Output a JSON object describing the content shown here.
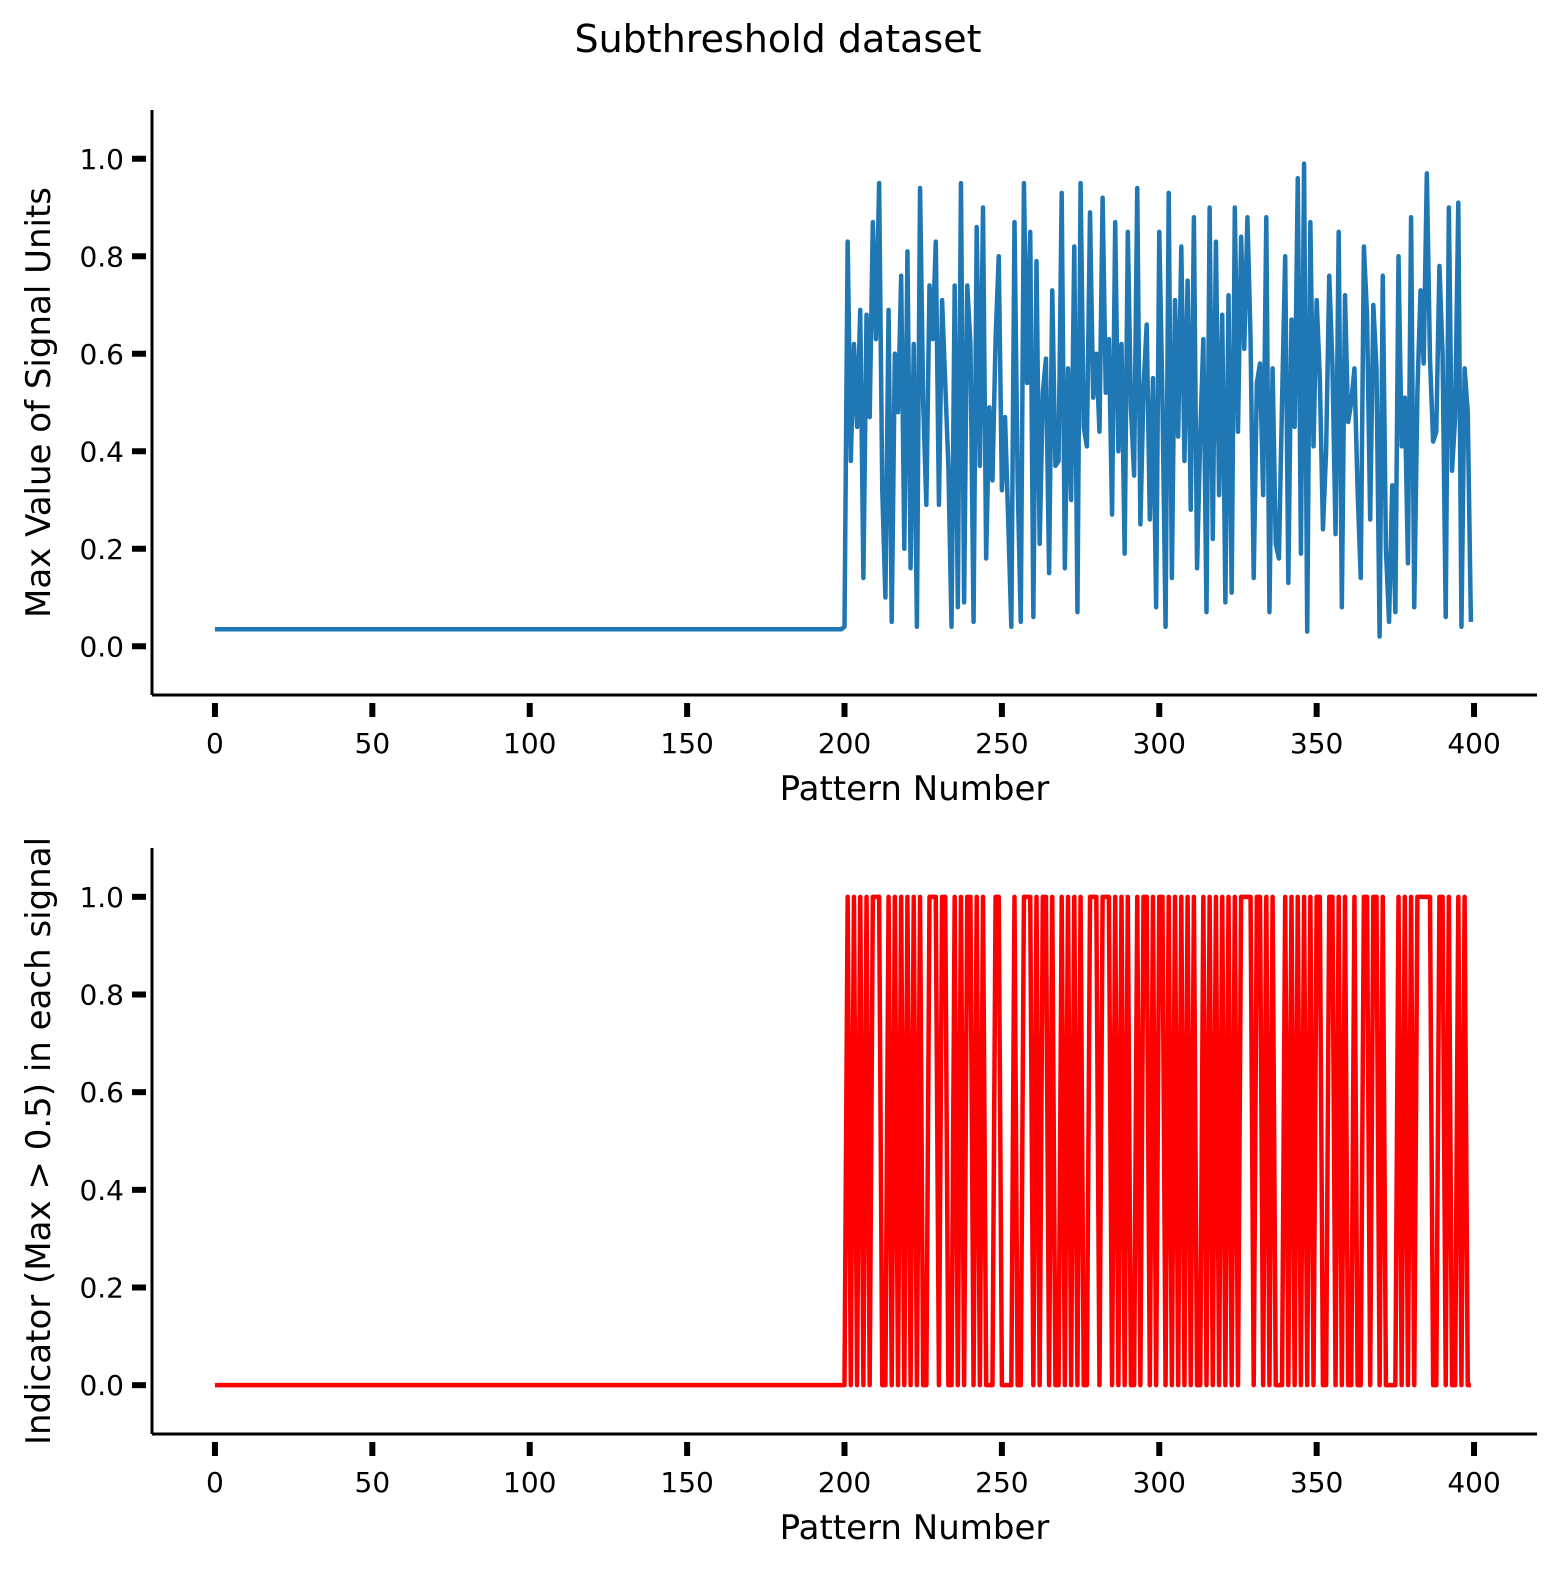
{
  "title": "Subthreshold dataset",
  "chart_data": [
    {
      "type": "line",
      "xlabel": "Pattern Number",
      "ylabel": "Max Value of Signal Units",
      "xlim": [
        -20,
        420
      ],
      "xticks": [
        0,
        50,
        100,
        150,
        200,
        250,
        300,
        350,
        400
      ],
      "ylim": [
        -0.1,
        1.1
      ],
      "yticks": [
        {
          "value": 0,
          "label": "0.0"
        },
        0.2,
        0.4,
        0.6,
        0.8,
        {
          "value": 1,
          "label": "1.0"
        }
      ],
      "series": [
        {
          "color": "#1f77b4",
          "values": [
            0.035,
            0.035,
            0.035,
            0.035,
            0.035,
            0.035,
            0.035,
            0.035,
            0.035,
            0.035,
            0.035,
            0.035,
            0.035,
            0.035,
            0.035,
            0.035,
            0.035,
            0.035,
            0.035,
            0.035,
            0.035,
            0.035,
            0.035,
            0.035,
            0.035,
            0.035,
            0.035,
            0.035,
            0.035,
            0.035,
            0.035,
            0.035,
            0.035,
            0.035,
            0.035,
            0.035,
            0.035,
            0.035,
            0.035,
            0.035,
            0.035,
            0.035,
            0.035,
            0.035,
            0.035,
            0.035,
            0.035,
            0.035,
            0.035,
            0.035,
            0.035,
            0.035,
            0.035,
            0.035,
            0.035,
            0.035,
            0.035,
            0.035,
            0.035,
            0.035,
            0.035,
            0.035,
            0.035,
            0.035,
            0.035,
            0.035,
            0.035,
            0.035,
            0.035,
            0.035,
            0.035,
            0.035,
            0.035,
            0.035,
            0.035,
            0.035,
            0.035,
            0.035,
            0.035,
            0.035,
            0.035,
            0.035,
            0.035,
            0.035,
            0.035,
            0.035,
            0.035,
            0.035,
            0.035,
            0.035,
            0.035,
            0.035,
            0.035,
            0.035,
            0.035,
            0.035,
            0.035,
            0.035,
            0.035,
            0.035,
            0.035,
            0.035,
            0.035,
            0.035,
            0.035,
            0.035,
            0.035,
            0.035,
            0.035,
            0.035,
            0.035,
            0.035,
            0.035,
            0.035,
            0.035,
            0.035,
            0.035,
            0.035,
            0.035,
            0.035,
            0.035,
            0.035,
            0.035,
            0.035,
            0.035,
            0.035,
            0.035,
            0.035,
            0.035,
            0.035,
            0.035,
            0.035,
            0.035,
            0.035,
            0.035,
            0.035,
            0.035,
            0.035,
            0.035,
            0.035,
            0.035,
            0.035,
            0.035,
            0.035,
            0.035,
            0.035,
            0.035,
            0.035,
            0.035,
            0.035,
            0.035,
            0.035,
            0.035,
            0.035,
            0.035,
            0.035,
            0.035,
            0.035,
            0.035,
            0.035,
            0.035,
            0.035,
            0.035,
            0.035,
            0.035,
            0.035,
            0.035,
            0.035,
            0.035,
            0.035,
            0.035,
            0.035,
            0.035,
            0.035,
            0.035,
            0.035,
            0.035,
            0.035,
            0.035,
            0.035,
            0.035,
            0.035,
            0.035,
            0.035,
            0.035,
            0.035,
            0.035,
            0.035,
            0.035,
            0.035,
            0.035,
            0.035,
            0.035,
            0.035,
            0.035,
            0.035,
            0.035,
            0.035,
            0.035,
            0.035,
            0.04,
            0.83,
            0.38,
            0.62,
            0.45,
            0.69,
            0.14,
            0.68,
            0.47,
            0.87,
            0.63,
            0.95,
            0.32,
            0.1,
            0.69,
            0.05,
            0.6,
            0.48,
            0.76,
            0.2,
            0.81,
            0.16,
            0.62,
            0.04,
            0.94,
            0.5,
            0.29,
            0.74,
            0.63,
            0.83,
            0.29,
            0.71,
            0.54,
            0.37,
            0.04,
            0.74,
            0.08,
            0.95,
            0.09,
            0.74,
            0.62,
            0.05,
            0.86,
            0.37,
            0.9,
            0.18,
            0.49,
            0.34,
            0.63,
            0.8,
            0.32,
            0.47,
            0.26,
            0.04,
            0.87,
            0.34,
            0.05,
            0.95,
            0.54,
            0.85,
            0.06,
            0.79,
            0.21,
            0.52,
            0.59,
            0.15,
            0.73,
            0.37,
            0.38,
            0.93,
            0.16,
            0.57,
            0.3,
            0.82,
            0.07,
            0.95,
            0.45,
            0.41,
            0.89,
            0.51,
            0.6,
            0.44,
            0.92,
            0.52,
            0.63,
            0.27,
            0.87,
            0.4,
            0.62,
            0.19,
            0.85,
            0.49,
            0.35,
            0.94,
            0.25,
            0.53,
            0.66,
            0.26,
            0.55,
            0.08,
            0.85,
            0.51,
            0.04,
            0.93,
            0.14,
            0.71,
            0.43,
            0.82,
            0.38,
            0.75,
            0.28,
            0.88,
            0.16,
            0.43,
            0.63,
            0.07,
            0.9,
            0.22,
            0.83,
            0.31,
            0.68,
            0.09,
            0.72,
            0.11,
            0.9,
            0.44,
            0.84,
            0.61,
            0.88,
            0.63,
            0.14,
            0.54,
            0.58,
            0.31,
            0.88,
            0.07,
            0.57,
            0.21,
            0.18,
            0.5,
            0.8,
            0.13,
            0.67,
            0.45,
            0.96,
            0.19,
            0.99,
            0.03,
            0.87,
            0.41,
            0.71,
            0.55,
            0.24,
            0.4,
            0.76,
            0.58,
            0.23,
            0.85,
            0.08,
            0.72,
            0.46,
            0.5,
            0.57,
            0.32,
            0.14,
            0.82,
            0.68,
            0.26,
            0.7,
            0.57,
            0.02,
            0.76,
            0.2,
            0.05,
            0.33,
            0.07,
            0.8,
            0.41,
            0.51,
            0.17,
            0.88,
            0.08,
            0.52,
            0.73,
            0.58,
            0.97,
            0.59,
            0.42,
            0.44,
            0.78,
            0.6,
            0.06,
            0.9,
            0.36,
            0.47,
            0.91,
            0.04,
            0.57,
            0.48,
            0.05
          ]
        }
      ]
    },
    {
      "type": "line",
      "xlabel": "Pattern Number",
      "ylabel": "Indicator (Max > 0.5) in each signal",
      "xlim": [
        -20,
        420
      ],
      "xticks": [
        0,
        50,
        100,
        150,
        200,
        250,
        300,
        350,
        400
      ],
      "ylim": [
        -0.1,
        1.1
      ],
      "yticks": [
        {
          "value": 0,
          "label": "0.0"
        },
        0.2,
        0.4,
        0.6,
        0.8,
        {
          "value": 1,
          "label": "1.0"
        }
      ],
      "series": [
        {
          "color": "#ff0000",
          "values": [
            0,
            0,
            0,
            0,
            0,
            0,
            0,
            0,
            0,
            0,
            0,
            0,
            0,
            0,
            0,
            0,
            0,
            0,
            0,
            0,
            0,
            0,
            0,
            0,
            0,
            0,
            0,
            0,
            0,
            0,
            0,
            0,
            0,
            0,
            0,
            0,
            0,
            0,
            0,
            0,
            0,
            0,
            0,
            0,
            0,
            0,
            0,
            0,
            0,
            0,
            0,
            0,
            0,
            0,
            0,
            0,
            0,
            0,
            0,
            0,
            0,
            0,
            0,
            0,
            0,
            0,
            0,
            0,
            0,
            0,
            0,
            0,
            0,
            0,
            0,
            0,
            0,
            0,
            0,
            0,
            0,
            0,
            0,
            0,
            0,
            0,
            0,
            0,
            0,
            0,
            0,
            0,
            0,
            0,
            0,
            0,
            0,
            0,
            0,
            0,
            0,
            0,
            0,
            0,
            0,
            0,
            0,
            0,
            0,
            0,
            0,
            0,
            0,
            0,
            0,
            0,
            0,
            0,
            0,
            0,
            0,
            0,
            0,
            0,
            0,
            0,
            0,
            0,
            0,
            0,
            0,
            0,
            0,
            0,
            0,
            0,
            0,
            0,
            0,
            0,
            0,
            0,
            0,
            0,
            0,
            0,
            0,
            0,
            0,
            0,
            0,
            0,
            0,
            0,
            0,
            0,
            0,
            0,
            0,
            0,
            0,
            0,
            0,
            0,
            0,
            0,
            0,
            0,
            0,
            0,
            0,
            0,
            0,
            0,
            0,
            0,
            0,
            0,
            0,
            0,
            0,
            0,
            0,
            0,
            0,
            0,
            0,
            0,
            0,
            0,
            0,
            0,
            0,
            0,
            0,
            0,
            0,
            0,
            0,
            0,
            0,
            1,
            0,
            1,
            0,
            1,
            0,
            1,
            0,
            1,
            1,
            1,
            0,
            0,
            1,
            0,
            1,
            0,
            1,
            0,
            1,
            0,
            1,
            0,
            1,
            0,
            0,
            1,
            1,
            1,
            0,
            1,
            1,
            0,
            0,
            1,
            0,
            1,
            0,
            1,
            1,
            0,
            1,
            0,
            1,
            0,
            0,
            0,
            1,
            1,
            0,
            0,
            0,
            0,
            1,
            0,
            0,
            1,
            1,
            1,
            0,
            1,
            0,
            1,
            1,
            0,
            1,
            0,
            0,
            1,
            0,
            1,
            0,
            1,
            0,
            1,
            0,
            0,
            1,
            1,
            1,
            0,
            1,
            1,
            1,
            0,
            1,
            0,
            1,
            0,
            1,
            0,
            0,
            1,
            0,
            1,
            1,
            0,
            1,
            0,
            1,
            1,
            0,
            1,
            0,
            1,
            0,
            1,
            0,
            1,
            0,
            1,
            0,
            0,
            1,
            0,
            1,
            0,
            1,
            0,
            1,
            0,
            1,
            0,
            1,
            0,
            1,
            1,
            1,
            1,
            0,
            1,
            1,
            0,
            1,
            0,
            1,
            0,
            0,
            0,
            1,
            0,
            1,
            0,
            1,
            0,
            1,
            0,
            1,
            0,
            1,
            1,
            0,
            0,
            1,
            1,
            0,
            1,
            0,
            1,
            0,
            0,
            1,
            0,
            0,
            1,
            1,
            0,
            1,
            1,
            0,
            1,
            0,
            0,
            0,
            0,
            1,
            0,
            1,
            0,
            1,
            0,
            1,
            1,
            1,
            1,
            1,
            0,
            0,
            1,
            1,
            0,
            1,
            0,
            0,
            1,
            0,
            1,
            0,
            0
          ]
        }
      ]
    }
  ]
}
